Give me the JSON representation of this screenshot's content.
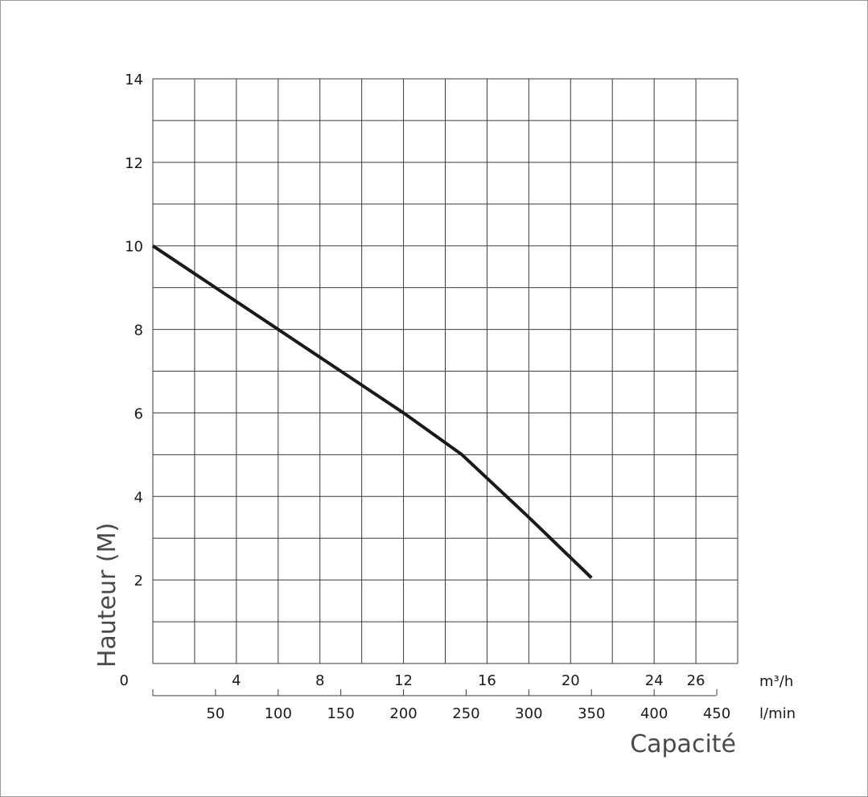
{
  "chart_data": {
    "type": "line",
    "title": "",
    "ylabel": "Hauteur (M)",
    "xlabel": "Capacité",
    "ylim": [
      0,
      14
    ],
    "y_ticks": [
      0,
      2,
      4,
      6,
      8,
      10,
      12,
      14
    ],
    "xlim": [
      0,
      28
    ],
    "x_ticks_m3h": [
      4,
      8,
      12,
      16,
      20,
      24,
      26
    ],
    "x_unit_m3h": "m³/h",
    "x_ticks_lmin": [
      50,
      100,
      150,
      200,
      250,
      300,
      350,
      400,
      450
    ],
    "x_unit_lmin": "l/min",
    "grid": true,
    "series": [
      {
        "x": [
          0,
          6,
          9,
          12,
          14.8,
          18,
          21
        ],
        "y": [
          10,
          8,
          7,
          6,
          5,
          3.5,
          2.05
        ],
        "color": "#1a1a1a"
      }
    ]
  }
}
